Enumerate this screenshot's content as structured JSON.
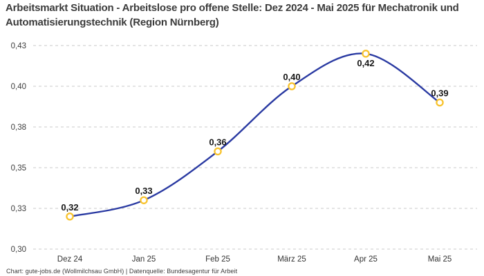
{
  "header": {
    "title": "Arbeitsmarkt Situation - Arbeitslose pro offene Stelle: Dez 2024 - Mai 2025 für Mechatronik und Automatisierungstechnik (Region Nürnberg)"
  },
  "footer": {
    "credit": "Chart: gute-jobs.de (Wollmilchsau GmbH) | Datenquelle: Bundesagentur für Arbeit"
  },
  "chart_data": {
    "type": "line",
    "title": "Arbeitsmarkt Situation - Arbeitslose pro offene Stelle: Dez 2024 - Mai 2025 für Mechatronik und Automatisierungstechnik (Region Nürnberg)",
    "categories": [
      "Dez 24",
      "Jan 25",
      "Feb 25",
      "März 25",
      "Apr 25",
      "Mai 25"
    ],
    "values": [
      0.32,
      0.33,
      0.36,
      0.4,
      0.42,
      0.39
    ],
    "point_labels": [
      "0,32",
      "0,33",
      "0,36",
      "0,40",
      "0,42",
      "0,39"
    ],
    "point_label_positions": [
      "above",
      "above",
      "above",
      "above",
      "below",
      "above"
    ],
    "xlabel": "",
    "ylabel": "",
    "ylim": [
      0.3,
      0.43
    ],
    "yticks": [
      {
        "value": 0.3,
        "label": "0,30"
      },
      {
        "value": 0.325,
        "label": "0,33"
      },
      {
        "value": 0.35,
        "label": "0,35"
      },
      {
        "value": 0.375,
        "label": "0,38"
      },
      {
        "value": 0.4,
        "label": "0,40"
      },
      {
        "value": 0.425,
        "label": "0,43"
      }
    ],
    "grid": "horizontal-dashed",
    "legend": "none",
    "line_shape": "smooth-spline",
    "colors": {
      "line": "#2a3aa2",
      "marker_ring": "#f8c32e",
      "marker_fill": "#ffffff",
      "grid": "#c9c9c9",
      "axis_text": "#3c3c3c",
      "point_label_text": "#161616",
      "title_text": "#3b3b3b"
    }
  }
}
